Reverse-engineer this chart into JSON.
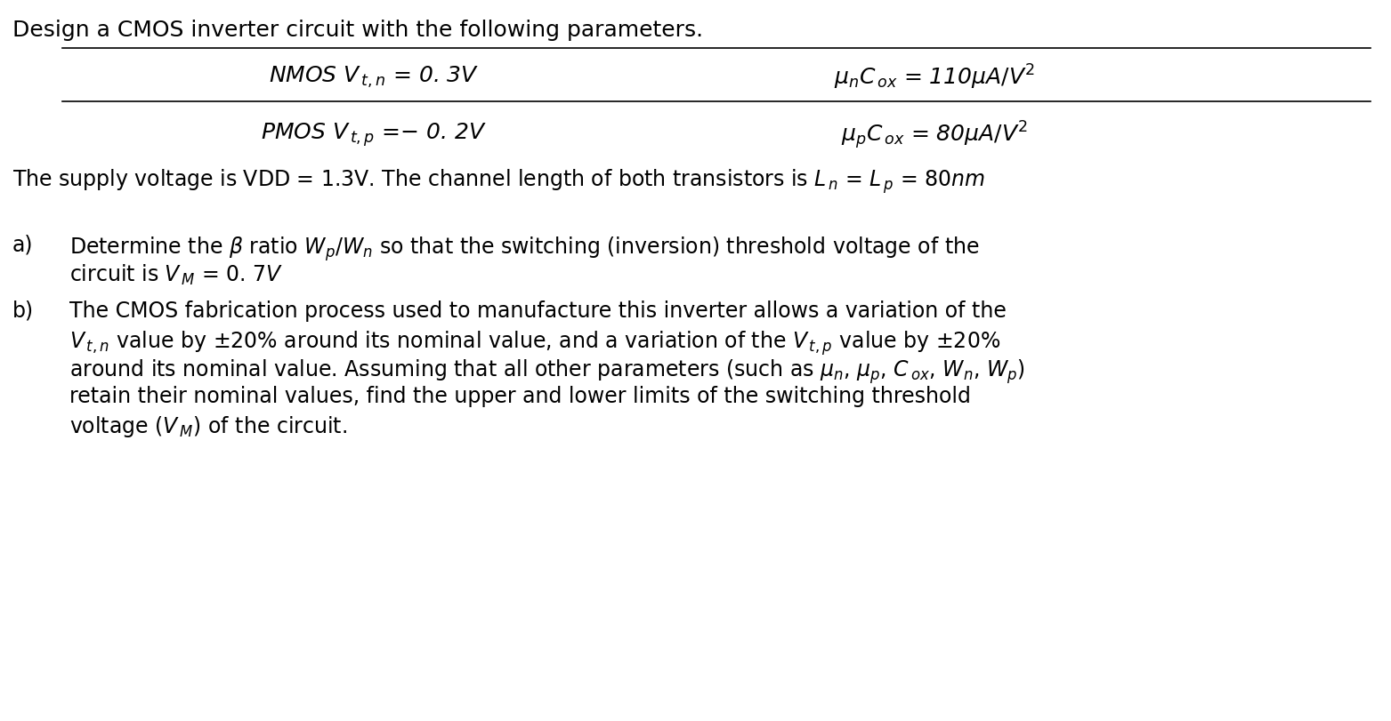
{
  "title": "Design a CMOS inverter circuit with the following parameters.",
  "background_color": "#ffffff",
  "text_color": "#000000",
  "figsize": [
    15.63,
    8.12
  ],
  "dpi": 100,
  "row1_left": "NMOS $V_{\\,t,n}$ = 0. 3$V$",
  "row1_right": "$\\mu_{n}\\,C_{\\,ox}$ = 110μA/$V^{2}$",
  "row2_left": "PMOS $V_{\\,t,p}$ =− 0. 2$V$",
  "row2_right": "$\\mu_{p}\\,C_{\\,ox}$ = 80μA/$V^{2}$",
  "supply_line": "The supply voltage is VDD = 1.3V. The channel length of both transistors is $L_{\\,n}$ = $L_{\\,p}$ = 80nm",
  "part_a_label": "a)",
  "part_a_line1": "Determine the β ratio $W_{p}$/$W_{n}$ so that the switching (inversion) threshold voltage of the",
  "part_a_line2": "circuit is $V_{\\,M}$ = 0. 7$V$",
  "part_b_label": "b)",
  "part_b_line1": "The CMOS fabrication process used to manufacture this inverter allows a variation of the",
  "part_b_line2": "$V_{\\,t,n}$ value by ±20% around its nominal value, and a variation of the $V_{\\,t,p}$ value by ±20%",
  "part_b_line3": "around its nominal value. Assuming that all other parameters (such as $\\mu_{n}$, $\\mu_{p}$, $C_{\\,ox}$, $W_{n}$, $W_{p}$)",
  "part_b_line4": "retain their nominal values, find the upper and lower limits of the switching threshold",
  "part_b_line5": "voltage ($V_{\\,M}$) of the circuit."
}
